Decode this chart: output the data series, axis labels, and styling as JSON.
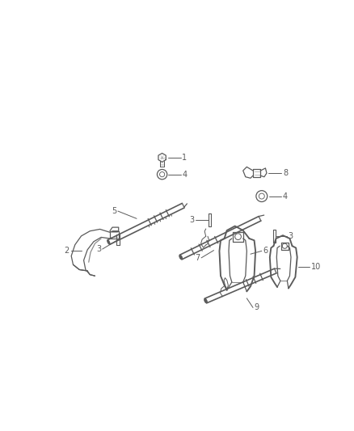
{
  "bg_color": "#ffffff",
  "line_color": "#5a5a5a",
  "label_color": "#5a5a5a",
  "figsize": [
    4.38,
    5.33
  ],
  "dpi": 100,
  "lw": 0.9,
  "lw_thick": 1.5,
  "label_fs": 7.0
}
